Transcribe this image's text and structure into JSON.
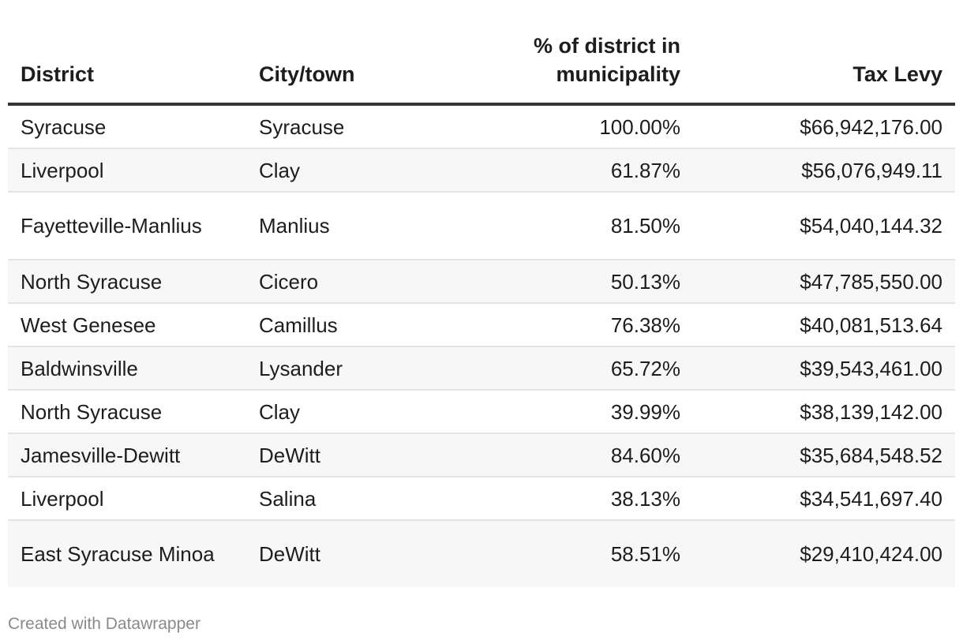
{
  "chart_data": {
    "type": "table",
    "columns": [
      "District",
      "City/town",
      "% of district in municipality",
      "Tax Levy"
    ],
    "rows": [
      {
        "district": "Syracuse",
        "town": "Syracuse",
        "pct": "100.00%",
        "levy": "$66,942,176.00"
      },
      {
        "district": "Liverpool",
        "town": "Clay",
        "pct": "61.87%",
        "levy": "$56,076,949.11"
      },
      {
        "district": "Fayetteville-Manlius",
        "town": "Manlius",
        "pct": "81.50%",
        "levy": "$54,040,144.32"
      },
      {
        "district": "North Syracuse",
        "town": "Cicero",
        "pct": "50.13%",
        "levy": "$47,785,550.00"
      },
      {
        "district": "West Genesee",
        "town": "Camillus",
        "pct": "76.38%",
        "levy": "$40,081,513.64"
      },
      {
        "district": "Baldwinsville",
        "town": "Lysander",
        "pct": "65.72%",
        "levy": "$39,543,461.00"
      },
      {
        "district": "North Syracuse",
        "town": "Clay",
        "pct": "39.99%",
        "levy": "$38,139,142.00"
      },
      {
        "district": "Jamesville-Dewitt",
        "town": "DeWitt",
        "pct": "84.60%",
        "levy": "$35,684,548.52"
      },
      {
        "district": "Liverpool",
        "town": "Salina",
        "pct": "38.13%",
        "levy": "$34,541,697.40"
      },
      {
        "district": "East Syracuse Minoa",
        "town": "DeWitt",
        "pct": "58.51%",
        "levy": "$29,410,424.00"
      }
    ]
  },
  "footer": {
    "credit": "Created with Datawrapper"
  }
}
